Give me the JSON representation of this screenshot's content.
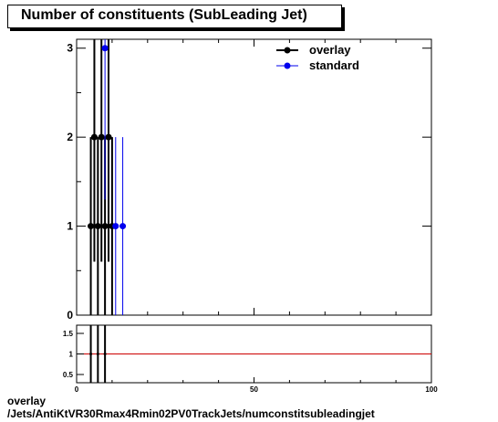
{
  "title": "Number of constituents (SubLeading Jet)",
  "caption_line1": "overlay",
  "caption_line2": "/Jets/AntiKtVR30Rmax4Rmin02PV0TrackJets/numconstitsubleadingjet",
  "colors": {
    "overlay": "#000000",
    "standard": "#0000ee",
    "ratio_line": "#cc0000"
  },
  "chart_data": [
    {
      "type": "scatter",
      "title": "Number of constituents (SubLeading Jet)",
      "xlim": [
        0,
        100
      ],
      "ylim": [
        0,
        3.1
      ],
      "yticks": [
        0,
        1,
        2,
        3
      ],
      "legend_position": "top-right",
      "series": [
        {
          "name": "overlay",
          "color": "#000000",
          "x": [
            4,
            5,
            6,
            7,
            8,
            9,
            10
          ],
          "y": [
            1,
            2,
            1,
            2,
            1,
            2,
            1
          ],
          "yerr": [
            1,
            1.4,
            1,
            1.4,
            1,
            1.4,
            1
          ]
        },
        {
          "name": "standard",
          "color": "#0000ee",
          "x": [
            8,
            11,
            13
          ],
          "y": [
            3,
            1,
            1
          ],
          "yerr": [
            1.7,
            1,
            1
          ]
        }
      ]
    },
    {
      "type": "scatter",
      "xlim": [
        0,
        100
      ],
      "ylim": [
        0.3,
        1.7
      ],
      "xticks": [
        0,
        50,
        100
      ],
      "yticks": [
        0.5,
        1,
        1.5
      ],
      "reference_line": 1,
      "series": [
        {
          "name": "overlay",
          "color": "#000000",
          "x": [
            4,
            6,
            8
          ],
          "y": [
            1,
            1,
            1
          ],
          "yerr": [
            1.5,
            1.5,
            1.5
          ]
        }
      ]
    }
  ]
}
